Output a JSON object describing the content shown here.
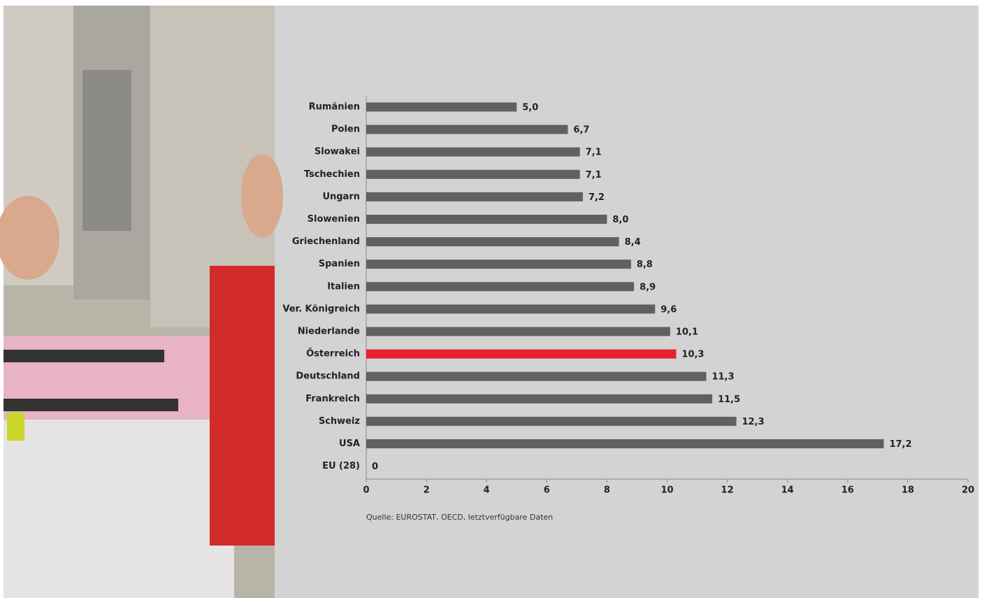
{
  "chart_data": {
    "type": "bar",
    "orientation": "horizontal",
    "categories": [
      "Rumänien",
      "Polen",
      "Slowakei",
      "Tschechien",
      "Ungarn",
      "Slowenien",
      "Griechenland",
      "Spanien",
      "Italien",
      "Ver. Königreich",
      "Niederlande",
      "Österreich",
      "Deutschland",
      "Frankreich",
      "Schweiz",
      "USA",
      "EU (28)"
    ],
    "values": [
      5.0,
      6.7,
      7.1,
      7.1,
      7.2,
      8.0,
      8.4,
      8.8,
      8.9,
      9.6,
      10.1,
      10.3,
      11.3,
      11.5,
      12.3,
      17.2,
      0
    ],
    "value_labels": [
      "5,0",
      "6,7",
      "7,1",
      "7,1",
      "7,2",
      "8,0",
      "8,4",
      "8,8",
      "8,9",
      "9,6",
      "10,1",
      "10,3",
      "11,3",
      "11,5",
      "12,3",
      "17,2",
      "0"
    ],
    "colors": [
      "#606060",
      "#606060",
      "#606060",
      "#606060",
      "#606060",
      "#606060",
      "#606060",
      "#606060",
      "#606060",
      "#606060",
      "#606060",
      "#e8202a",
      "#606060",
      "#606060",
      "#606060",
      "#606060",
      "#606060"
    ],
    "xlim": [
      0,
      20
    ],
    "xticks": [
      0,
      2,
      4,
      6,
      8,
      10,
      12,
      14,
      16,
      18,
      20
    ],
    "source": "Quelle: EUROSTAT, OECD, letztverfügbare Daten"
  }
}
